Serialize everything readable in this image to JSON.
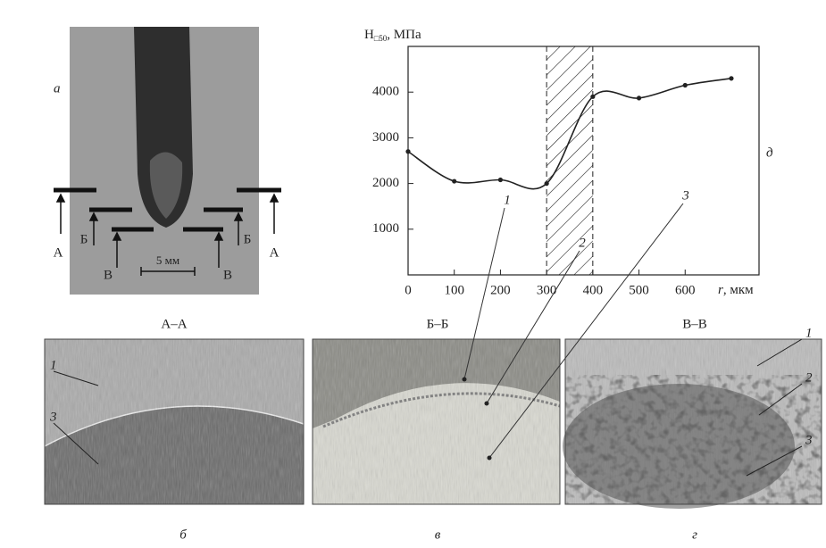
{
  "chart_data": {
    "type": "line",
    "panel_letter": "д",
    "ylabel_parts": [
      "H",
      "□50",
      ", МПа"
    ],
    "xlabel_parts": [
      "r",
      ", мкм"
    ],
    "x": [
      0,
      100,
      200,
      300,
      400,
      500,
      600,
      700
    ],
    "series": [
      {
        "color": "#222222",
        "values": [
          2700,
          2050,
          2080,
          2000,
          3900,
          3870,
          4150,
          4300
        ]
      }
    ],
    "xlim": [
      0,
      760
    ],
    "ylim": [
      0,
      5000
    ],
    "xticks": [
      0,
      100,
      200,
      300,
      400,
      500,
      600
    ],
    "yticks": [
      1000,
      2000,
      3000,
      4000
    ],
    "shaded_range": [
      300,
      400
    ],
    "callouts": [
      "1",
      "2",
      "3"
    ]
  },
  "figure": {
    "panel_a": {
      "letter": "а",
      "sections": [
        "А",
        "Б",
        "В",
        "В",
        "Б",
        "А"
      ],
      "scale": "5 мм"
    },
    "micrographs": [
      {
        "title": "А–А",
        "letter": "б",
        "labels": [
          "1",
          "3"
        ]
      },
      {
        "title": "Б–Б",
        "letter": "в"
      },
      {
        "title": "В–В",
        "letter": "г",
        "labels": [
          "1",
          "2",
          "3"
        ]
      }
    ]
  }
}
